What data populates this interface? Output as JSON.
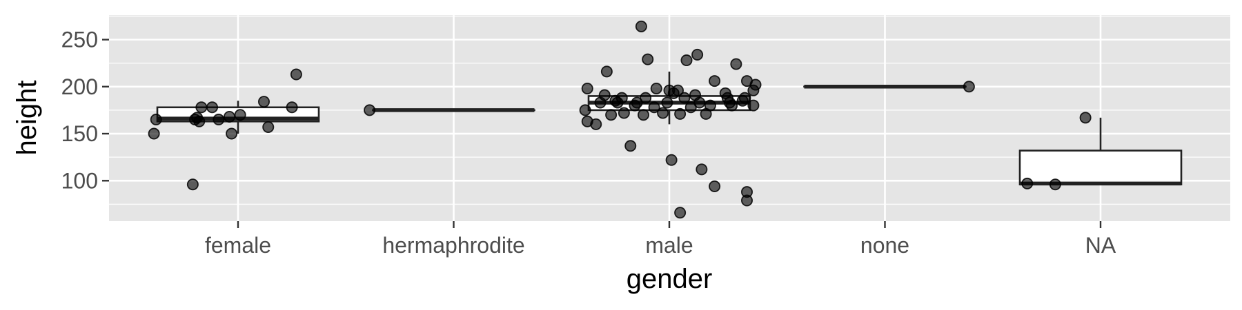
{
  "chart_data": {
    "type": "boxplot",
    "xlabel": "gender",
    "ylabel": "height",
    "categories": [
      "female",
      "hermaphrodite",
      "male",
      "none",
      "NA"
    ],
    "ylim": [
      57,
      276
    ],
    "yticks": [
      100,
      150,
      200,
      250
    ],
    "grid": true,
    "colors": {
      "panel": "#e5e5e5",
      "grid": "#ffffff",
      "point": "#000000",
      "point_alpha": 0.6,
      "box_fill": "#ffffff",
      "box_stroke": "#222222"
    },
    "boxes": [
      {
        "category": "female",
        "lower_whisker": 150,
        "q1": 163,
        "median": 166,
        "q3": 178,
        "upper_whisker": 185
      },
      {
        "category": "hermaphrodite",
        "lower_whisker": 175,
        "q1": 175,
        "median": 175,
        "q3": 175,
        "upper_whisker": 175
      },
      {
        "category": "male",
        "lower_whisker": 160,
        "q1": 175,
        "median": 183,
        "q3": 190,
        "upper_whisker": 216
      },
      {
        "category": "none",
        "lower_whisker": 200,
        "q1": 200,
        "median": 200,
        "q3": 200,
        "upper_whisker": 200
      },
      {
        "category": "NA",
        "lower_whisker": 96,
        "q1": 96,
        "median": 97,
        "q3": 132,
        "upper_whisker": 167
      }
    ],
    "points": [
      {
        "category": "female",
        "jitter": -0.38,
        "y": 165
      },
      {
        "category": "female",
        "jitter": -0.39,
        "y": 150
      },
      {
        "category": "female",
        "jitter": -0.21,
        "y": 96
      },
      {
        "category": "female",
        "jitter": -0.2,
        "y": 165
      },
      {
        "category": "female",
        "jitter": -0.19,
        "y": 167
      },
      {
        "category": "female",
        "jitter": -0.18,
        "y": 163
      },
      {
        "category": "female",
        "jitter": -0.17,
        "y": 178
      },
      {
        "category": "female",
        "jitter": -0.12,
        "y": 178
      },
      {
        "category": "female",
        "jitter": -0.09,
        "y": 165
      },
      {
        "category": "female",
        "jitter": -0.04,
        "y": 168
      },
      {
        "category": "female",
        "jitter": -0.03,
        "y": 150
      },
      {
        "category": "female",
        "jitter": 0.01,
        "y": 170
      },
      {
        "category": "female",
        "jitter": 0.12,
        "y": 184
      },
      {
        "category": "female",
        "jitter": 0.14,
        "y": 157
      },
      {
        "category": "female",
        "jitter": 0.25,
        "y": 178
      },
      {
        "category": "female",
        "jitter": 0.27,
        "y": 213
      },
      {
        "category": "hermaphrodite",
        "jitter": -0.39,
        "y": 175
      },
      {
        "category": "male",
        "jitter": -0.39,
        "y": 175
      },
      {
        "category": "male",
        "jitter": -0.38,
        "y": 163
      },
      {
        "category": "male",
        "jitter": -0.38,
        "y": 198
      },
      {
        "category": "male",
        "jitter": -0.34,
        "y": 160
      },
      {
        "category": "male",
        "jitter": -0.32,
        "y": 183
      },
      {
        "category": "male",
        "jitter": -0.3,
        "y": 191
      },
      {
        "category": "male",
        "jitter": -0.29,
        "y": 216
      },
      {
        "category": "male",
        "jitter": -0.27,
        "y": 170
      },
      {
        "category": "male",
        "jitter": -0.25,
        "y": 185
      },
      {
        "category": "male",
        "jitter": -0.24,
        "y": 183
      },
      {
        "category": "male",
        "jitter": -0.22,
        "y": 188
      },
      {
        "category": "male",
        "jitter": -0.21,
        "y": 172
      },
      {
        "category": "male",
        "jitter": -0.18,
        "y": 137
      },
      {
        "category": "male",
        "jitter": -0.16,
        "y": 180
      },
      {
        "category": "male",
        "jitter": -0.15,
        "y": 183
      },
      {
        "category": "male",
        "jitter": -0.13,
        "y": 264
      },
      {
        "category": "male",
        "jitter": -0.12,
        "y": 170
      },
      {
        "category": "male",
        "jitter": -0.11,
        "y": 188
      },
      {
        "category": "male",
        "jitter": -0.1,
        "y": 229
      },
      {
        "category": "male",
        "jitter": -0.07,
        "y": 178
      },
      {
        "category": "male",
        "jitter": -0.06,
        "y": 198
      },
      {
        "category": "male",
        "jitter": -0.03,
        "y": 172
      },
      {
        "category": "male",
        "jitter": -0.01,
        "y": 183
      },
      {
        "category": "male",
        "jitter": 0.0,
        "y": 196
      },
      {
        "category": "male",
        "jitter": 0.01,
        "y": 122
      },
      {
        "category": "male",
        "jitter": 0.02,
        "y": 193
      },
      {
        "category": "male",
        "jitter": 0.04,
        "y": 196
      },
      {
        "category": "male",
        "jitter": 0.05,
        "y": 171
      },
      {
        "category": "male",
        "jitter": 0.07,
        "y": 188
      },
      {
        "category": "male",
        "jitter": 0.08,
        "y": 228
      },
      {
        "category": "male",
        "jitter": 0.1,
        "y": 178
      },
      {
        "category": "male",
        "jitter": 0.12,
        "y": 191
      },
      {
        "category": "male",
        "jitter": 0.13,
        "y": 234
      },
      {
        "category": "male",
        "jitter": 0.14,
        "y": 183
      },
      {
        "category": "male",
        "jitter": 0.15,
        "y": 112
      },
      {
        "category": "male",
        "jitter": 0.17,
        "y": 171
      },
      {
        "category": "male",
        "jitter": 0.19,
        "y": 180
      },
      {
        "category": "male",
        "jitter": 0.21,
        "y": 206
      },
      {
        "category": "male",
        "jitter": 0.21,
        "y": 94
      },
      {
        "category": "male",
        "jitter": 0.26,
        "y": 193
      },
      {
        "category": "male",
        "jitter": 0.27,
        "y": 188
      },
      {
        "category": "male",
        "jitter": 0.28,
        "y": 183
      },
      {
        "category": "male",
        "jitter": 0.29,
        "y": 180
      },
      {
        "category": "male",
        "jitter": 0.31,
        "y": 224
      },
      {
        "category": "male",
        "jitter": 0.34,
        "y": 185
      },
      {
        "category": "male",
        "jitter": 0.35,
        "y": 188
      },
      {
        "category": "male",
        "jitter": 0.36,
        "y": 79
      },
      {
        "category": "male",
        "jitter": 0.36,
        "y": 88
      },
      {
        "category": "male",
        "jitter": 0.36,
        "y": 206
      },
      {
        "category": "male",
        "jitter": 0.39,
        "y": 196
      },
      {
        "category": "male",
        "jitter": 0.39,
        "y": 180
      },
      {
        "category": "male",
        "jitter": 0.4,
        "y": 202
      },
      {
        "category": "male",
        "jitter": 0.05,
        "y": 66
      },
      {
        "category": "none",
        "jitter": 0.39,
        "y": 200
      },
      {
        "category": "NA",
        "jitter": -0.34,
        "y": 97
      },
      {
        "category": "NA",
        "jitter": -0.21,
        "y": 96
      },
      {
        "category": "NA",
        "jitter": -0.07,
        "y": 167
      }
    ]
  }
}
